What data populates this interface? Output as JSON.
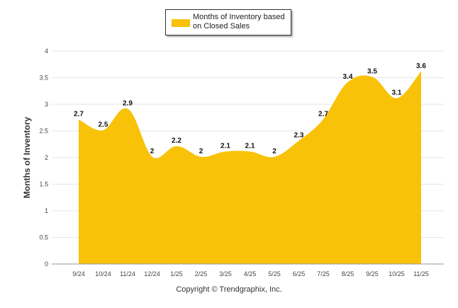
{
  "chart_data": {
    "type": "area",
    "categories": [
      "9/24",
      "10/24",
      "11/24",
      "12/24",
      "1/25",
      "2/25",
      "3/25",
      "4/25",
      "5/25",
      "6/25",
      "7/25",
      "8/25",
      "9/25",
      "10/25",
      "11/25"
    ],
    "series": [
      {
        "name": "Months of Inventory based on Closed Sales",
        "values": [
          2.7,
          2.5,
          2.9,
          2,
          2.2,
          2,
          2.1,
          2.1,
          2,
          2.3,
          2.7,
          3.4,
          3.5,
          3.1,
          3.6
        ],
        "labels": [
          "2.7",
          "2.5",
          "2.9",
          "2",
          "2.2",
          "2",
          "2.1",
          "2.1",
          "2",
          "2.3",
          "2.7",
          "3.4",
          "3.5",
          "3.1",
          "3.6"
        ],
        "color": "#F8C209"
      }
    ],
    "ylabel": "Months of Inventory",
    "yticks": [
      "0",
      "0.5",
      "1",
      "1.5",
      "2",
      "2.5",
      "3",
      "3.5",
      "4"
    ],
    "ylim": [
      0,
      4
    ],
    "grid": true,
    "legend": "top-center"
  },
  "footer": {
    "copyright": "Copyright © Trendgraphix, Inc."
  }
}
